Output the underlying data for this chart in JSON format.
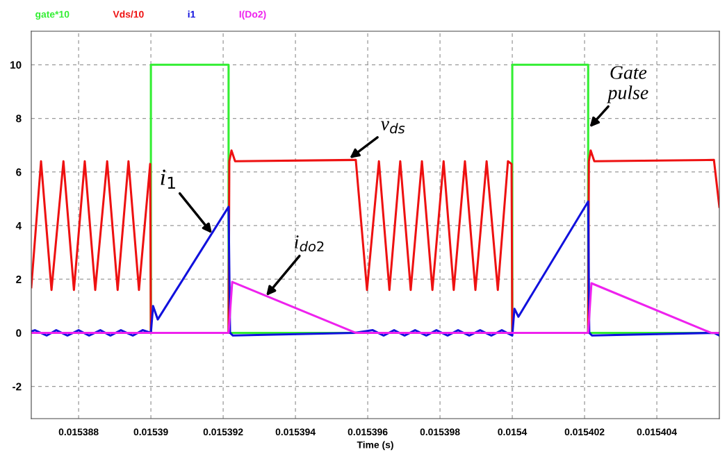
{
  "chart_data": {
    "type": "line",
    "xlabel": "Time (s)",
    "xlim": [
      0.01538669,
      0.01540573
    ],
    "ylim": [
      -3.2,
      11.25
    ],
    "xticks": [
      0.015388,
      0.01539,
      0.015392,
      0.015394,
      0.015396,
      0.015398,
      0.0154,
      0.015402,
      0.015404
    ],
    "yticks": [
      -2,
      0,
      2,
      4,
      6,
      8,
      10
    ],
    "grid": true,
    "legend": "top left",
    "line_style": "solid",
    "series": [
      {
        "name": "gate*10",
        "color": "#33ee33",
        "x": [
          0.01538669,
          0.01539,
          0.01539,
          0.01539215,
          0.01539215,
          0.0154,
          0.0154,
          0.0154021,
          0.0154021,
          0.01540573
        ],
        "values": [
          0,
          0,
          10,
          10,
          0,
          0,
          10,
          10,
          0,
          0
        ]
      },
      {
        "name": "Vds/10",
        "color": "#ee1111",
        "x": [
          0.01538669,
          0.01538696,
          0.01538725,
          0.01538758,
          0.01538787,
          0.01538817,
          0.01538846,
          0.01538879,
          0.01538908,
          0.01538938,
          0.01538967,
          0.01538998,
          0.01539,
          0.01539215,
          0.01539217,
          0.01539223,
          0.01539233,
          0.01539567,
          0.01539598,
          0.01539631,
          0.0153966,
          0.0153969,
          0.01539719,
          0.0153975,
          0.01539779,
          0.0153981,
          0.01539838,
          0.01539869,
          0.01539898,
          0.01539929,
          0.0153996,
          0.01539988,
          0.01539998,
          0.0154,
          0.0154021,
          0.01540212,
          0.01540217,
          0.01540227,
          0.01540558,
          0.01540573
        ],
        "values": [
          1.7,
          6.4,
          1.6,
          6.4,
          1.6,
          6.4,
          1.6,
          6.4,
          1.6,
          6.4,
          1.6,
          6.3,
          0,
          0,
          6.4,
          6.8,
          6.4,
          6.45,
          1.6,
          6.4,
          1.6,
          6.4,
          1.6,
          6.4,
          1.6,
          6.4,
          1.6,
          6.4,
          1.6,
          6.4,
          1.6,
          6.4,
          6.3,
          0,
          0,
          6.4,
          6.8,
          6.4,
          6.45,
          4.7
        ]
      },
      {
        "name": "i1",
        "color": "#1111dd",
        "x": [
          0.01538669,
          0.01538679,
          0.01538712,
          0.01538738,
          0.01538769,
          0.015388,
          0.01538829,
          0.0153886,
          0.01538888,
          0.01538917,
          0.0153895,
          0.01538977,
          0.01539,
          0.01539006,
          0.01539019,
          0.01539215,
          0.01539219,
          0.01539227,
          0.01539563,
          0.01539614,
          0.01539644,
          0.01539673,
          0.01539702,
          0.01539731,
          0.01539762,
          0.0153979,
          0.01539821,
          0.0153985,
          0.01539881,
          0.01539911,
          0.01539942,
          0.01539971,
          0.0154,
          0.01540006,
          0.01540017,
          0.0154021,
          0.01540213,
          0.01540221,
          0.01540558,
          0.01540573
        ],
        "values": [
          0.05,
          0.1,
          -0.1,
          0.1,
          -0.1,
          0.1,
          -0.1,
          0.1,
          -0.1,
          0.1,
          -0.1,
          0.1,
          0,
          1.0,
          0.5,
          4.7,
          0,
          -0.1,
          0,
          0.1,
          -0.1,
          0.1,
          -0.1,
          0.1,
          -0.1,
          0.1,
          -0.1,
          0.1,
          -0.1,
          0.1,
          -0.1,
          0.1,
          -0.1,
          0.9,
          0.6,
          4.9,
          0,
          -0.1,
          0,
          -0.1
        ]
      },
      {
        "name": "I(Do2)",
        "color": "#ee22ee",
        "x": [
          0.01538669,
          0.01539215,
          0.01539225,
          0.01539567,
          0.0154021,
          0.01540219,
          0.0154055,
          0.01540573
        ],
        "values": [
          0,
          0,
          1.9,
          0,
          0,
          1.85,
          0,
          0
        ]
      }
    ],
    "annotations": [
      {
        "text": "i$_{1}$",
        "x": 0.01539169,
        "y": 3.71
      },
      {
        "text": "v$_{ds}$",
        "x": 0.0153955,
        "y": 6.51
      },
      {
        "text": "i$_{do2}$",
        "x": 0.01539319,
        "y": 1.38
      },
      {
        "text": "Gate\npulse",
        "x": 0.01540214,
        "y": 7.67
      }
    ]
  }
}
